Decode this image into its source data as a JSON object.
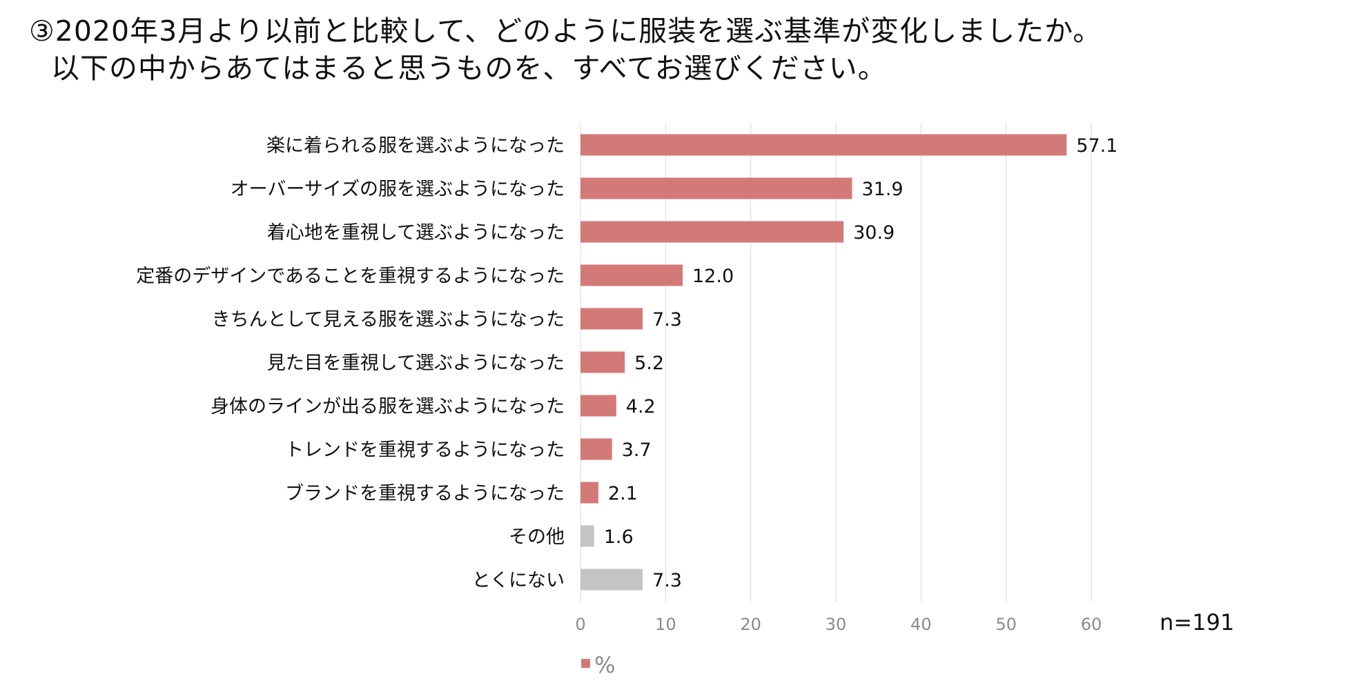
{
  "header": {
    "title_line1": "③2020年3月より以前と比較して、どのように服装を選ぶ基準が変化しましたか。",
    "title_line2": "以下の中からあてはまると思うものを、すべてお選びください。"
  },
  "chart_data": {
    "type": "bar",
    "orientation": "horizontal",
    "categories": [
      "楽に着られる服を選ぶようになった",
      "オーバーサイズの服を選ぶようになった",
      "着心地を重視して選ぶようになった",
      "定番のデザインであることを重視するようになった",
      "きちんとして見える服を選ぶようになった",
      "見た目を重視して選ぶようになった",
      "身体のラインが出る服を選ぶようになった",
      "トレンドを重視するようになった",
      "ブランドを重視するようになった",
      "その他",
      "とくにない"
    ],
    "values": [
      57.1,
      31.9,
      30.9,
      12.0,
      7.3,
      5.2,
      4.2,
      3.7,
      2.1,
      1.6,
      7.3
    ],
    "value_labels": [
      "57.1",
      "31.9",
      "30.9",
      "12.0",
      "7.3",
      "5.2",
      "4.2",
      "3.7",
      "2.1",
      "1.6",
      "7.3"
    ],
    "series": [
      {
        "name": "%"
      }
    ],
    "bar_colors": [
      "#d37a78",
      "#d37a78",
      "#d37a78",
      "#d37a78",
      "#d37a78",
      "#d37a78",
      "#d37a78",
      "#d37a78",
      "#d37a78",
      "#c4c4c4",
      "#c4c4c4"
    ],
    "xlim": [
      0,
      60
    ],
    "xticks": [
      0,
      10,
      20,
      30,
      40,
      50,
      60
    ],
    "grid": true,
    "legend": "bottom-left",
    "legend_color": "#d37a78",
    "gridline_color": "#d9d9d9",
    "annotation": "n=191"
  }
}
